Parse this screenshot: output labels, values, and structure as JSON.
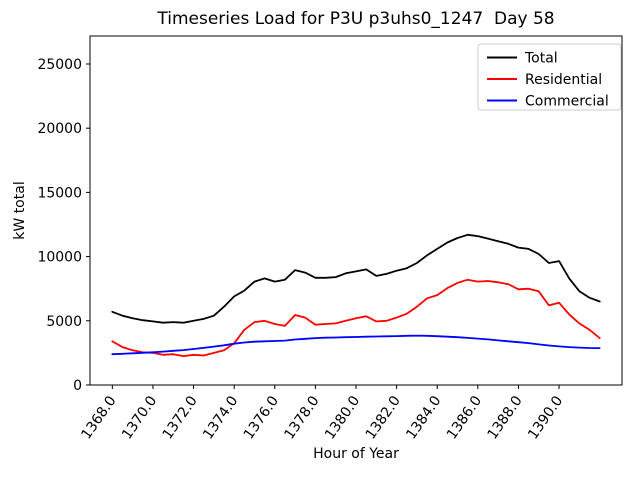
{
  "figure": {
    "title": "Timeseries Load for P3U p3uhs0_1247  Day 58"
  },
  "chart_data": {
    "type": "line",
    "title": "Timeseries Load for P3U p3uhs0_1247  Day 58",
    "xlabel": "Hour of Year",
    "ylabel": "kW total",
    "xlim": [
      1366.9,
      1393.1
    ],
    "ylim": [
      0,
      27180
    ],
    "grid": false,
    "xticks": [
      1368,
      1370,
      1372,
      1374,
      1376,
      1378,
      1380,
      1382,
      1384,
      1386,
      1388,
      1390
    ],
    "xtick_labels": [
      "1368.0",
      "1370.0",
      "1372.0",
      "1374.0",
      "1376.0",
      "1378.0",
      "1380.0",
      "1382.0",
      "1384.0",
      "1386.0",
      "1388.0",
      "1390.0"
    ],
    "yticks": [
      0,
      5000,
      10000,
      15000,
      20000,
      25000
    ],
    "ytick_labels": [
      "0",
      "5000",
      "10000",
      "15000",
      "20000",
      "25000"
    ],
    "x": [
      1368.0,
      1368.5,
      1369.0,
      1369.5,
      1370.0,
      1370.5,
      1371.0,
      1371.5,
      1372.0,
      1372.5,
      1373.0,
      1373.5,
      1374.0,
      1374.5,
      1375.0,
      1375.5,
      1376.0,
      1376.5,
      1377.0,
      1377.5,
      1378.0,
      1378.5,
      1379.0,
      1379.5,
      1380.0,
      1380.5,
      1381.0,
      1381.5,
      1382.0,
      1382.5,
      1383.0,
      1383.5,
      1384.0,
      1384.5,
      1385.0,
      1385.5,
      1386.0,
      1386.5,
      1387.0,
      1387.5,
      1388.0,
      1388.5,
      1389.0,
      1389.5,
      1390.0,
      1390.5,
      1391.0,
      1391.5,
      1392.0
    ],
    "series": [
      {
        "name": "Total",
        "color": "#000000",
        "values": [
          5700,
          5400,
          5200,
          5050,
          4950,
          4850,
          4900,
          4850,
          5000,
          5150,
          5400,
          6100,
          6900,
          7350,
          8050,
          8300,
          8050,
          8200,
          8950,
          8750,
          8350,
          8350,
          8400,
          8700,
          8850,
          9000,
          8500,
          8650,
          8900,
          9100,
          9500,
          10100,
          10600,
          11100,
          11450,
          11700,
          11600,
          11400,
          11200,
          11000,
          10700,
          10600,
          10200,
          9500,
          9650,
          8300,
          7300,
          6800,
          6500
        ]
      },
      {
        "name": "Residential",
        "color": "#ff0000",
        "values": [
          3400,
          2950,
          2700,
          2550,
          2500,
          2350,
          2400,
          2250,
          2350,
          2300,
          2500,
          2700,
          3250,
          4300,
          4900,
          5000,
          4750,
          4600,
          5450,
          5250,
          4700,
          4750,
          4800,
          5000,
          5200,
          5350,
          4950,
          5000,
          5250,
          5550,
          6100,
          6750,
          7000,
          7550,
          7950,
          8200,
          8050,
          8100,
          8000,
          7850,
          7450,
          7500,
          7300,
          6200,
          6400,
          5500,
          4800,
          4300,
          3650
        ]
      },
      {
        "name": "Commercial",
        "color": "#0000ff",
        "values": [
          2400,
          2430,
          2470,
          2510,
          2550,
          2600,
          2660,
          2720,
          2800,
          2890,
          2990,
          3090,
          3220,
          3310,
          3370,
          3400,
          3430,
          3460,
          3540,
          3600,
          3650,
          3680,
          3700,
          3720,
          3740,
          3760,
          3780,
          3790,
          3810,
          3830,
          3850,
          3830,
          3800,
          3760,
          3720,
          3670,
          3610,
          3550,
          3470,
          3400,
          3330,
          3260,
          3160,
          3080,
          3010,
          2950,
          2910,
          2880,
          2870
        ]
      }
    ],
    "legend": {
      "position": "upper right",
      "entries": [
        "Total",
        "Residential",
        "Commercial"
      ]
    }
  }
}
